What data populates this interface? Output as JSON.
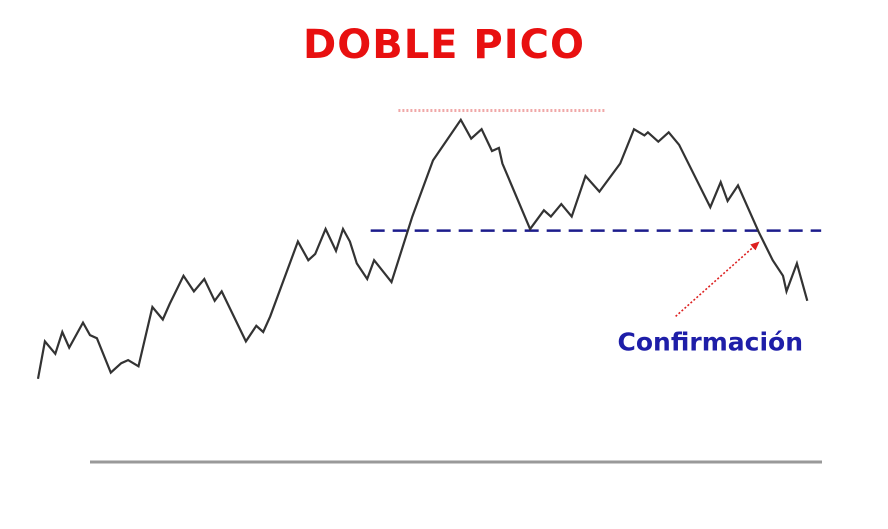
{
  "chart_data": {
    "type": "line",
    "title": "DOBLE PICO",
    "xlabel": "",
    "ylabel": "",
    "grid": false,
    "xlim": [
      0,
      130
    ],
    "ylim": [
      0,
      100
    ],
    "series": [
      {
        "values": [
          [
            0,
            10
          ],
          [
            1,
            22
          ],
          [
            2.5,
            18
          ],
          [
            3.5,
            25
          ],
          [
            4.5,
            20
          ],
          [
            6.5,
            28
          ],
          [
            7.5,
            24
          ],
          [
            8.5,
            23
          ],
          [
            10.5,
            12
          ],
          [
            12,
            15
          ],
          [
            13,
            16
          ],
          [
            14.5,
            14
          ],
          [
            16.5,
            33
          ],
          [
            18,
            29
          ],
          [
            19,
            34
          ],
          [
            21,
            43
          ],
          [
            22.5,
            38
          ],
          [
            24,
            42
          ],
          [
            25.5,
            35
          ],
          [
            26.5,
            38
          ],
          [
            30,
            22
          ],
          [
            31.5,
            27
          ],
          [
            32.5,
            25
          ],
          [
            33.5,
            30
          ],
          [
            37.5,
            54
          ],
          [
            39,
            48
          ],
          [
            40,
            50
          ],
          [
            41.5,
            58
          ],
          [
            43,
            51
          ],
          [
            44,
            58
          ],
          [
            45,
            54
          ],
          [
            46,
            47
          ],
          [
            47.5,
            42
          ],
          [
            48.5,
            48
          ],
          [
            51,
            41
          ],
          [
            54,
            62
          ],
          [
            57,
            80
          ],
          [
            61,
            93
          ],
          [
            62.5,
            87
          ],
          [
            64,
            90
          ],
          [
            65.5,
            83
          ],
          [
            66.5,
            84
          ],
          [
            67,
            79
          ],
          [
            71,
            58
          ],
          [
            73,
            64
          ],
          [
            74,
            62
          ],
          [
            75.5,
            66
          ],
          [
            77,
            62
          ],
          [
            79,
            75
          ],
          [
            81,
            70
          ],
          [
            84,
            79
          ],
          [
            86,
            90
          ],
          [
            87.5,
            88
          ],
          [
            88,
            89
          ],
          [
            89.5,
            86
          ],
          [
            91,
            89
          ],
          [
            92.5,
            85
          ],
          [
            97,
            65
          ],
          [
            98.5,
            73
          ],
          [
            99.5,
            67
          ],
          [
            101,
            72
          ],
          [
            104,
            57
          ],
          [
            106,
            48
          ],
          [
            107.5,
            43
          ],
          [
            108,
            38
          ],
          [
            109.5,
            47
          ],
          [
            111,
            35
          ]
        ]
      }
    ],
    "reference_lines": [
      {
        "orientation": "horizontal",
        "y": 96,
        "x_range": [
          52,
          82
        ],
        "style": "dotted",
        "color": "#f0a8a8"
      },
      {
        "orientation": "horizontal",
        "y": 57.5,
        "x_range": [
          48,
          113
        ],
        "style": "dashed",
        "color": "#1c1c8c"
      }
    ],
    "annotations": [
      {
        "text": "Confirmación",
        "text_at": [
          97,
          19
        ],
        "arrow_from": [
          92,
          30
        ],
        "arrow_to": [
          104,
          57
        ],
        "text_color": "#1e1ea8",
        "arrow_color": "#dd2020"
      }
    ],
    "baseline": {
      "color": "#999999"
    },
    "colors": {
      "title": "#e81010",
      "line": "#333333",
      "annotation_text": "#1e1ea8",
      "annotation_arrow": "#dd2020"
    }
  }
}
